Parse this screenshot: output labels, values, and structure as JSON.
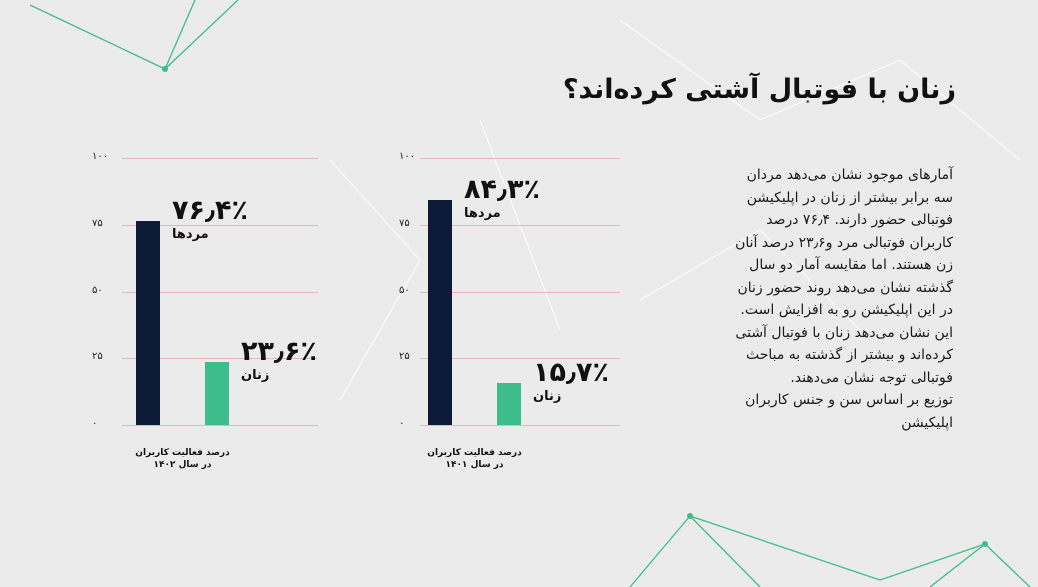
{
  "title": "زنان با فوتبال آشتی کرده‌اند؟",
  "paragraph": [
    "آمارهای موجود نشان می‌دهد مردان",
    "سه برابر بیشتر از زنان در اپلیکیشن",
    "فوتبالی حضور دارند. ۷۶٫۴ درصد",
    "کاربران فوتبالی مرد و۲۳٫۶ درصد آنان",
    "زن هستند. اما مقایسه آمار دو سال",
    "گذشته نشان می‌دهد روند حضور زنان",
    "در این اپلیکیشن رو به افزایش است.",
    "این نشان می‌دهد زنان با فوتبال آشتی",
    "کرده‌اند و بیشتر از گذشته به مباحث",
    "فوتبالی توجه نشان می‌دهند.",
    "توزیع بر اساس سن و جنس کاربران",
    "اپلیکیشن"
  ],
  "colors": {
    "men": "#0d1a38",
    "women": "#3dbd8c",
    "grid": "#e2b8be",
    "accent_lines": "#3dbd8c"
  },
  "chart_data": [
    {
      "type": "bar",
      "categories": [
        "مردها",
        "زنان"
      ],
      "values": [
        76.4,
        23.6
      ],
      "data_labels": [
        "۷۶٫۴٪",
        "۲۳٫۶٪"
      ],
      "yticks": [
        "۰",
        "۲۵",
        "۵۰",
        "۷۵",
        "۱۰۰"
      ],
      "ylim": [
        0,
        100
      ],
      "grid": true,
      "caption": [
        "درصد فعالیت کاربران",
        "در سال ۱۴۰۲"
      ]
    },
    {
      "type": "bar",
      "categories": [
        "مردها",
        "زنان"
      ],
      "values": [
        84.3,
        15.7
      ],
      "data_labels": [
        "۸۴٫۳٪",
        "۱۵٫۷٪"
      ],
      "yticks": [
        "۰",
        "۲۵",
        "۵۰",
        "۷۵",
        "۱۰۰"
      ],
      "ylim": [
        0,
        100
      ],
      "grid": true,
      "caption": [
        "درصد فعالیت کاربران",
        "در سال ۱۴۰۱"
      ]
    }
  ]
}
